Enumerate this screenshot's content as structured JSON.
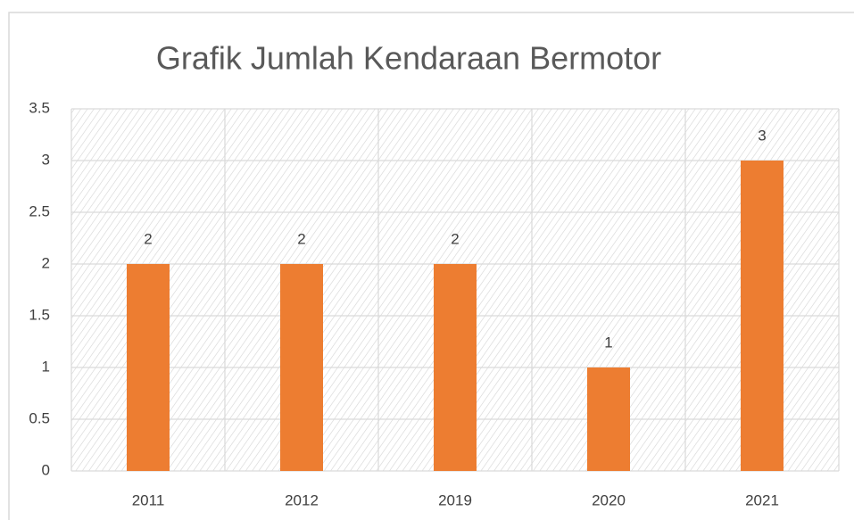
{
  "chart_data": {
    "type": "bar",
    "title": "Grafik Jumlah Kendaraan Bermotor",
    "categories": [
      "2011",
      "2012",
      "2019",
      "2020",
      "2021"
    ],
    "values": [
      2,
      2,
      2,
      1,
      3
    ],
    "color": "#ed7d31",
    "ylim": [
      0,
      3.5
    ],
    "yticks": [
      0,
      0.5,
      1,
      1.5,
      2,
      2.5,
      3,
      3.5
    ],
    "grid": true
  }
}
